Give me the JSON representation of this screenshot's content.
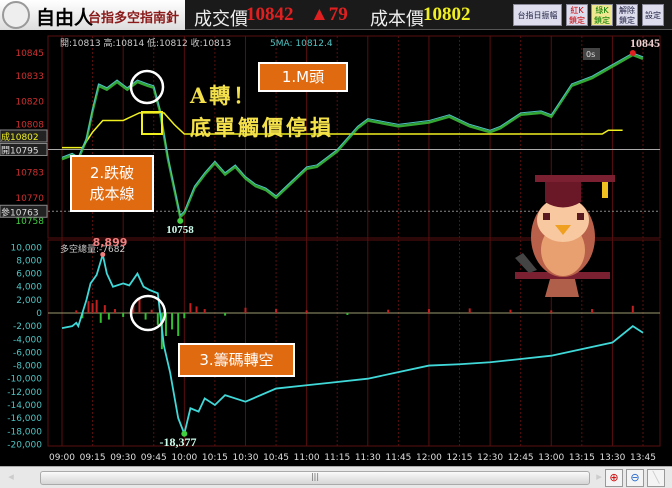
{
  "header": {
    "brand": "自由人",
    "subtitle": "台指多空指南針",
    "price_label": "成交價",
    "price": "10842",
    "change": "▲79",
    "cost_label": "成本價",
    "cost": "10802",
    "buttons": [
      {
        "label": "台指日振幅"
      },
      {
        "label": "紅K\n鎖定"
      },
      {
        "label": "綠K\n鎖定"
      },
      {
        "label": "解除\n鎖定"
      },
      {
        "label": "設定"
      }
    ]
  },
  "colors": {
    "up": "#e02020",
    "cost": "#f0f020",
    "price_line": "#4fc3c3",
    "candle_up": "#40d040",
    "flow": "#40d8d8",
    "grid": "#5a0f0f",
    "annotation_box": "#e06a10"
  },
  "price_panel": {
    "ohlc": "開:10813 高:10814 低:10812 收:10813",
    "sma": "5MA: 10812.4",
    "timer": "0s",
    "high_label": "10845",
    "low_label": "10758",
    "ticks": [
      10845,
      10833,
      10820,
      10808,
      10783,
      10770
    ],
    "tags": [
      {
        "prefix": "成",
        "value": "10802"
      },
      {
        "prefix": "開",
        "value": "10795"
      },
      {
        "prefix": "參",
        "value": "10763"
      }
    ],
    "low_tick": "10758",
    "series": [
      [
        "09:00",
        10790
      ],
      [
        "09:05",
        10792
      ],
      [
        "09:08",
        10790
      ],
      [
        "09:12",
        10800
      ],
      [
        "09:15",
        10815
      ],
      [
        "09:18",
        10828
      ],
      [
        "09:22",
        10826
      ],
      [
        "09:27",
        10830
      ],
      [
        "09:32",
        10826
      ],
      [
        "09:37",
        10830
      ],
      [
        "09:42",
        10828
      ],
      [
        "09:45",
        10827
      ],
      [
        "09:48",
        10815
      ],
      [
        "09:52",
        10790
      ],
      [
        "09:55",
        10775
      ],
      [
        "09:58",
        10760
      ],
      [
        "10:00",
        10762
      ],
      [
        "10:05",
        10775
      ],
      [
        "10:10",
        10782
      ],
      [
        "10:15",
        10788
      ],
      [
        "10:20",
        10782
      ],
      [
        "10:25",
        10786
      ],
      [
        "10:30",
        10780
      ],
      [
        "10:35",
        10776
      ],
      [
        "10:40",
        10774
      ],
      [
        "10:45",
        10770
      ],
      [
        "10:50",
        10775
      ],
      [
        "10:55",
        10780
      ],
      [
        "11:00",
        10785
      ],
      [
        "11:05",
        10786
      ],
      [
        "11:10",
        10790
      ],
      [
        "11:15",
        10794
      ],
      [
        "11:20",
        10800
      ],
      [
        "11:25",
        10806
      ],
      [
        "11:30",
        10810
      ],
      [
        "11:45",
        10807
      ],
      [
        "12:00",
        10809
      ],
      [
        "12:10",
        10812
      ],
      [
        "12:20",
        10807
      ],
      [
        "12:30",
        10804
      ],
      [
        "12:35",
        10806
      ],
      [
        "12:45",
        10813
      ],
      [
        "12:55",
        10814
      ],
      [
        "13:00",
        10812
      ],
      [
        "13:10",
        10828
      ],
      [
        "13:20",
        10832
      ],
      [
        "13:30",
        10838
      ],
      [
        "13:40",
        10844
      ],
      [
        "13:45",
        10842
      ]
    ],
    "cost_series": [
      [
        "09:00",
        10796
      ],
      [
        "09:10",
        10796
      ],
      [
        "09:15",
        10804
      ],
      [
        "09:20",
        10810
      ],
      [
        "09:30",
        10810
      ],
      [
        "09:38",
        10814
      ],
      [
        "09:50",
        10814
      ],
      [
        "09:55",
        10808
      ],
      [
        "10:00",
        10803
      ],
      [
        "13:25",
        10803
      ],
      [
        "13:28",
        10805
      ],
      [
        "13:35",
        10805
      ]
    ],
    "open_line": 10795,
    "ref_line": 10763
  },
  "flow_panel": {
    "label": "多空總量:-7682",
    "high_label": "8,899",
    "low_label": "-18,377",
    "ticks": [
      "10,000",
      "8,000",
      "6,000",
      "4,000",
      "2,000",
      "0",
      "-2,000",
      "-4,000",
      "-6,000",
      "-8,000",
      "-10,000",
      "-12,000",
      "-14,000",
      "-16,000",
      "-18,000",
      "-20,000"
    ],
    "series": [
      [
        "09:00",
        -2300
      ],
      [
        "09:05",
        -2000
      ],
      [
        "09:07",
        -1500
      ],
      [
        "09:08",
        -2000
      ],
      [
        "09:12",
        2000
      ],
      [
        "09:14",
        4500
      ],
      [
        "09:17",
        5800
      ],
      [
        "09:20",
        8899
      ],
      [
        "09:22",
        6000
      ],
      [
        "09:25",
        4000
      ],
      [
        "09:30",
        4500
      ],
      [
        "09:33",
        4200
      ],
      [
        "09:37",
        6000
      ],
      [
        "09:40",
        4000
      ],
      [
        "09:43",
        3500
      ],
      [
        "09:47",
        3000
      ],
      [
        "09:50",
        -5000
      ],
      [
        "09:53",
        -9000
      ],
      [
        "09:57",
        -16000
      ],
      [
        "10:00",
        -18377
      ],
      [
        "10:03",
        -14500
      ],
      [
        "10:07",
        -15000
      ],
      [
        "10:10",
        -13000
      ],
      [
        "10:15",
        -14000
      ],
      [
        "10:20",
        -12500
      ],
      [
        "10:30",
        -13500
      ],
      [
        "10:45",
        -11500
      ],
      [
        "11:00",
        -11000
      ],
      [
        "11:15",
        -10500
      ],
      [
        "11:30",
        -10000
      ],
      [
        "11:45",
        -9000
      ],
      [
        "12:00",
        -8000
      ],
      [
        "12:15",
        -7800
      ],
      [
        "12:30",
        -7500
      ],
      [
        "12:45",
        -7000
      ],
      [
        "13:00",
        -6500
      ],
      [
        "13:15",
        -5500
      ],
      [
        "13:30",
        -4500
      ],
      [
        "13:40",
        -2000
      ],
      [
        "13:45",
        -3000
      ]
    ],
    "bars": [
      [
        "09:07",
        400
      ],
      [
        "09:10",
        -800
      ],
      [
        "09:13",
        1800
      ],
      [
        "09:15",
        1500
      ],
      [
        "09:17",
        2000
      ],
      [
        "09:19",
        -1500
      ],
      [
        "09:21",
        1200
      ],
      [
        "09:23",
        -1000
      ],
      [
        "09:26",
        600
      ],
      [
        "09:30",
        -600
      ],
      [
        "09:35",
        1200
      ],
      [
        "09:38",
        2300
      ],
      [
        "09:41",
        -1000
      ],
      [
        "09:44",
        500
      ],
      [
        "09:47",
        -1800
      ],
      [
        "09:49",
        -5500
      ],
      [
        "09:51",
        -3500
      ],
      [
        "09:54",
        -2500
      ],
      [
        "09:57",
        -3500
      ],
      [
        "10:00",
        -800
      ],
      [
        "10:03",
        1500
      ],
      [
        "10:06",
        1000
      ],
      [
        "10:10",
        600
      ],
      [
        "10:20",
        -400
      ],
      [
        "10:30",
        800
      ],
      [
        "10:45",
        600
      ],
      [
        "11:00",
        400
      ],
      [
        "11:20",
        -300
      ],
      [
        "11:40",
        500
      ],
      [
        "12:00",
        600
      ],
      [
        "12:20",
        700
      ],
      [
        "12:40",
        500
      ],
      [
        "13:00",
        400
      ],
      [
        "13:20",
        600
      ],
      [
        "13:40",
        1100
      ]
    ]
  },
  "time_axis": [
    "09:00",
    "09:15",
    "09:30",
    "09:45",
    "10:00",
    "10:15",
    "10:30",
    "10:45",
    "11:00",
    "11:15",
    "11:30",
    "11:45",
    "12:00",
    "12:15",
    "12:30",
    "12:45",
    "13:00",
    "13:15",
    "13:30",
    "13:45"
  ],
  "annotations": {
    "m_top": "1.M頭",
    "a_turn": "A轉！",
    "stop": "底單觸價停損",
    "break_cost": "2.跌破\n成本線",
    "chips": "3.籌碼轉空"
  }
}
